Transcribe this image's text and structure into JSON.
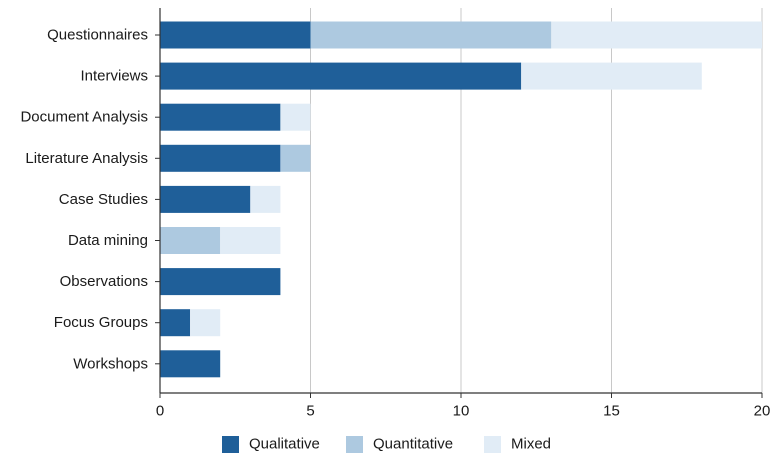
{
  "chart_data": {
    "type": "bar",
    "orientation": "horizontal",
    "stacked": true,
    "title": "",
    "xlabel": "",
    "ylabel": "",
    "categories": [
      "Questionnaires",
      "Interviews",
      "Document Analysis",
      "Literature Analysis",
      "Case Studies",
      "Data mining",
      "Observations",
      "Focus Groups",
      "Workshops"
    ],
    "series": [
      {
        "name": "Qualitative",
        "color": "#1f5f99",
        "values": [
          5,
          12,
          4,
          4,
          3,
          0,
          4,
          1,
          2
        ]
      },
      {
        "name": "Quantitative",
        "color": "#adc9e0",
        "values": [
          8,
          0,
          0,
          1,
          0,
          2,
          0,
          0,
          0
        ]
      },
      {
        "name": "Mixed",
        "color": "#e1ecf6",
        "values": [
          7,
          6,
          1,
          0,
          1,
          2,
          0,
          1,
          0
        ]
      }
    ],
    "xlim": [
      0,
      20
    ],
    "xticks": [
      0,
      5,
      10,
      15,
      20
    ],
    "grid": "vertical",
    "legend_position": "bottom-center"
  }
}
